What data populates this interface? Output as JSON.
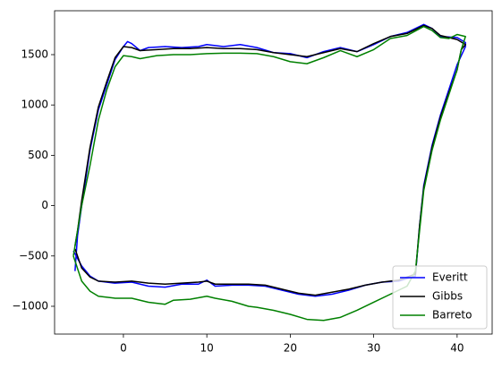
{
  "chart_data": {
    "type": "line",
    "xlim": [
      -8.25,
      44.2
    ],
    "ylim": [
      -1276,
      1936
    ],
    "xticks": [
      0,
      10,
      20,
      30,
      40
    ],
    "yticks": [
      {
        "value": -1000,
        "label": "−1000"
      },
      {
        "value": -500,
        "label": "−500"
      },
      0,
      500,
      1000,
      1500
    ],
    "legend": "lower right",
    "series": [
      {
        "name": "Everitt",
        "color": "#0000ff",
        "x": [
          -5.8,
          -5.5,
          -5,
          -4,
          -3,
          -2,
          -1,
          0,
          0.5,
          1,
          2,
          3,
          5,
          7,
          9,
          10,
          12,
          14,
          16,
          18,
          20,
          22,
          24,
          26,
          28,
          30,
          32,
          34,
          36,
          37,
          38,
          40,
          41,
          41,
          40,
          39,
          38,
          37,
          36,
          35.5,
          35,
          33,
          31,
          29,
          27,
          25,
          23,
          21,
          19,
          17,
          15,
          13,
          11,
          10,
          9,
          7,
          5,
          3,
          1,
          -1,
          -3,
          -4,
          -5,
          -6
        ],
        "values": [
          -650,
          -300,
          0,
          550,
          950,
          1200,
          1450,
          1580,
          1630,
          1610,
          1540,
          1570,
          1580,
          1570,
          1580,
          1600,
          1580,
          1600,
          1570,
          1520,
          1510,
          1470,
          1530,
          1570,
          1530,
          1600,
          1680,
          1720,
          1800,
          1760,
          1680,
          1670,
          1620,
          1580,
          1400,
          1150,
          900,
          600,
          200,
          -200,
          -700,
          -750,
          -760,
          -790,
          -840,
          -880,
          -900,
          -880,
          -840,
          -800,
          -790,
          -790,
          -800,
          -740,
          -780,
          -780,
          -810,
          -800,
          -760,
          -770,
          -750,
          -700,
          -600,
          -450
        ]
      },
      {
        "name": "Gibbs",
        "color": "#000000",
        "x": [
          -5.8,
          -5.5,
          -5,
          -4,
          -3,
          -2,
          -1,
          0,
          1,
          2,
          4,
          6,
          8,
          10,
          12,
          14,
          16,
          18,
          20,
          22,
          24,
          26,
          28,
          30,
          32,
          34,
          36,
          37,
          38,
          40,
          41,
          40.5,
          40,
          39,
          38,
          37,
          36,
          35.5,
          35,
          33,
          31,
          29,
          27,
          25,
          23,
          21,
          19,
          17,
          15,
          13,
          11,
          10,
          9,
          7,
          5,
          3,
          1,
          -1,
          -3,
          -4,
          -5,
          -5.8
        ],
        "values": [
          -400,
          -250,
          50,
          580,
          980,
          1230,
          1470,
          1580,
          1570,
          1540,
          1550,
          1560,
          1560,
          1570,
          1560,
          1560,
          1550,
          1520,
          1500,
          1480,
          1520,
          1560,
          1530,
          1610,
          1680,
          1710,
          1790,
          1760,
          1690,
          1650,
          1600,
          1550,
          1350,
          1120,
          880,
          580,
          180,
          -200,
          -680,
          -740,
          -760,
          -790,
          -830,
          -860,
          -890,
          -870,
          -830,
          -790,
          -780,
          -780,
          -780,
          -750,
          -760,
          -770,
          -780,
          -770,
          -750,
          -760,
          -750,
          -710,
          -620,
          -430
        ]
      },
      {
        "name": "Barreto",
        "color": "#008000",
        "x": [
          -6,
          -5.5,
          -5,
          -4,
          -3,
          -2,
          -1,
          0,
          1,
          2,
          4,
          6,
          8,
          10,
          12,
          14,
          16,
          18,
          20,
          22,
          24,
          26,
          28,
          30,
          32,
          34,
          36,
          37,
          38,
          39,
          40,
          41,
          40.5,
          40,
          39,
          38,
          37,
          36,
          35.5,
          35,
          34,
          32,
          30,
          28,
          26,
          24,
          22,
          20,
          18,
          16,
          15,
          13,
          11,
          10,
          8,
          6,
          5,
          3,
          1,
          0,
          -1,
          -3,
          -4,
          -5,
          -6
        ],
        "values": [
          -500,
          -250,
          0,
          400,
          850,
          1150,
          1380,
          1490,
          1480,
          1460,
          1490,
          1500,
          1500,
          1510,
          1515,
          1515,
          1510,
          1480,
          1430,
          1410,
          1470,
          1540,
          1480,
          1550,
          1660,
          1690,
          1780,
          1740,
          1670,
          1660,
          1700,
          1680,
          1550,
          1350,
          1100,
          850,
          550,
          150,
          -250,
          -650,
          -800,
          -880,
          -960,
          -1040,
          -1110,
          -1140,
          -1130,
          -1080,
          -1040,
          -1010,
          -1000,
          -950,
          -920,
          -900,
          -930,
          -940,
          -980,
          -960,
          -920,
          -920,
          -920,
          -900,
          -850,
          -750,
          -500
        ]
      }
    ]
  }
}
